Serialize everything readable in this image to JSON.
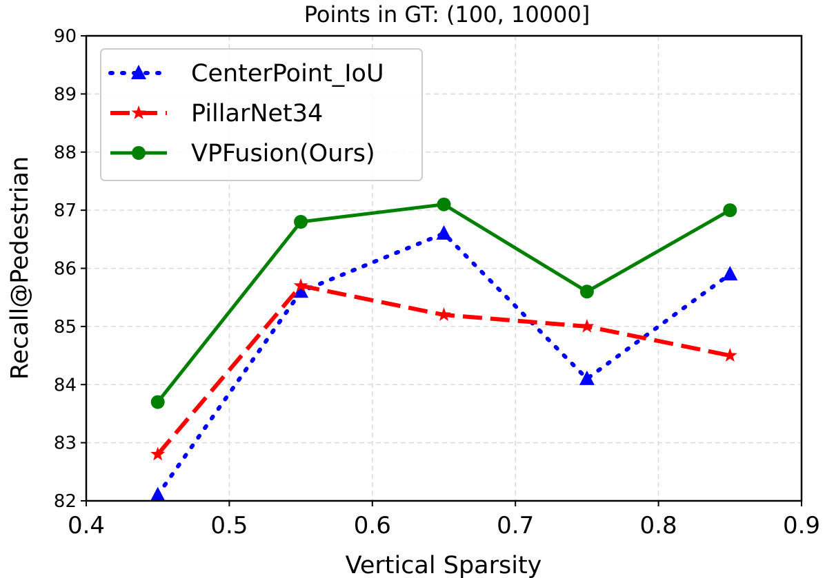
{
  "chart_data": {
    "type": "line",
    "title": "Points in GT: (100, 10000]",
    "xlabel": "Vertical Sparsity",
    "ylabel": "Recall@Pedestrian",
    "xlim": [
      0.4,
      0.9
    ],
    "ylim": [
      82,
      90
    ],
    "xticks": [
      "0.4",
      "0.5",
      "0.6",
      "0.7",
      "0.8",
      "0.9"
    ],
    "yticks": [
      "82",
      "83",
      "84",
      "85",
      "86",
      "87",
      "88",
      "89",
      "90"
    ],
    "grid": true,
    "legend_position": "upper-left",
    "x": [
      0.45,
      0.55,
      0.65,
      0.75,
      0.85
    ],
    "series": [
      {
        "name": "CenterPoint_IoU",
        "color": "#0000ff",
        "line": "dotted",
        "marker": "triangle",
        "values": [
          82.1,
          85.6,
          86.6,
          84.1,
          85.9
        ]
      },
      {
        "name": "PillarNet34",
        "color": "#ff0000",
        "line": "dashed",
        "marker": "star",
        "values": [
          82.8,
          85.7,
          85.2,
          85.0,
          84.5
        ]
      },
      {
        "name": "VPFusion(Ours)",
        "color": "#008000",
        "line": "solid",
        "marker": "circle",
        "values": [
          83.7,
          86.8,
          87.1,
          85.6,
          87.0
        ]
      }
    ]
  }
}
